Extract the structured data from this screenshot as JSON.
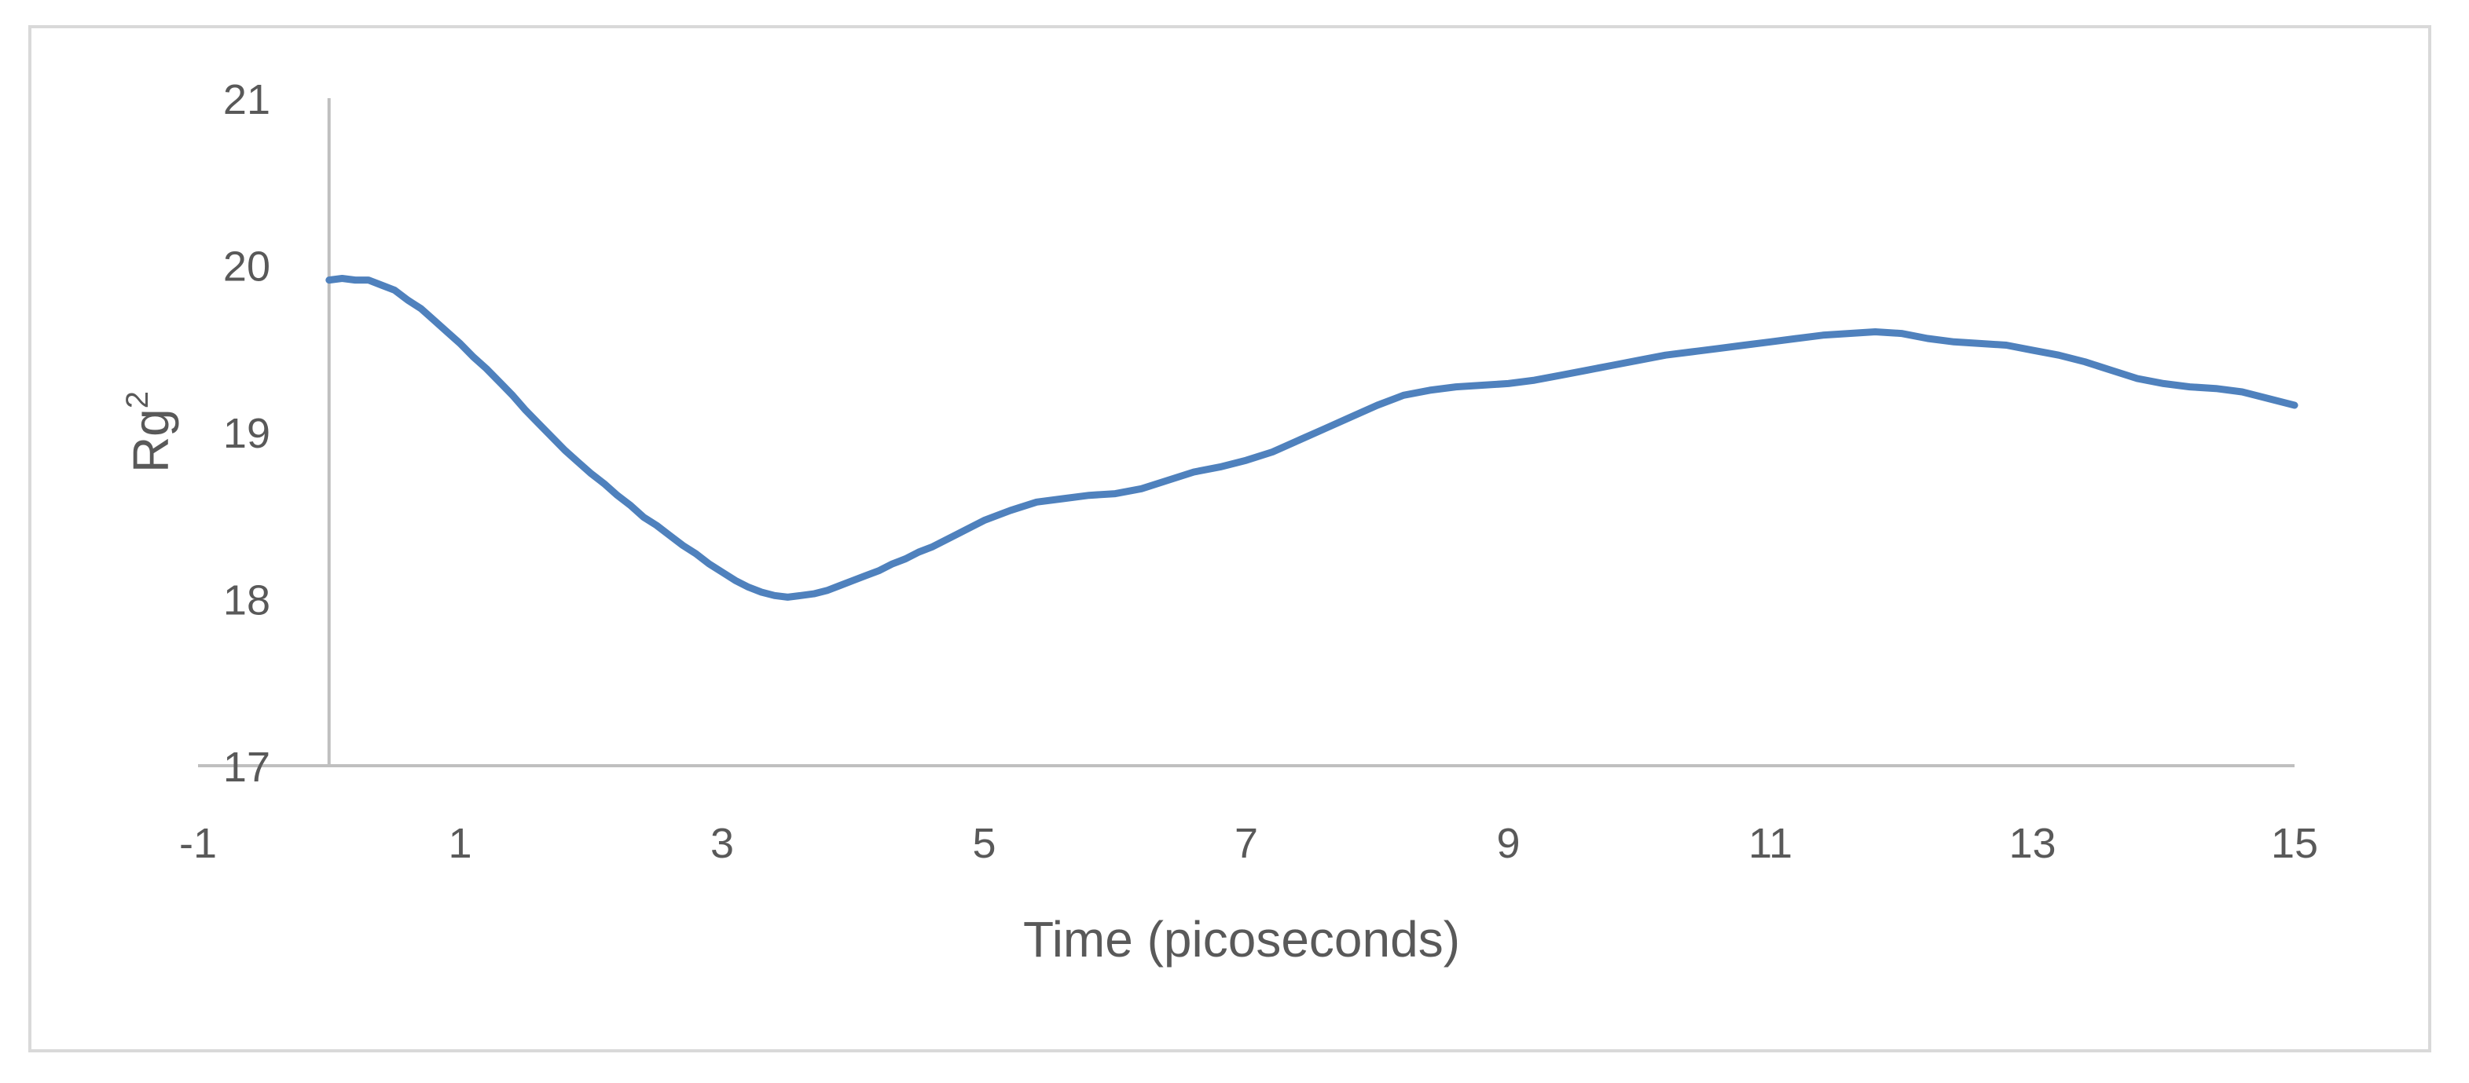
{
  "chart_data": {
    "type": "line",
    "xlabel": "Time (picoseconds)",
    "ylabel": {
      "base": "Rg",
      "superscript": "2"
    },
    "xlim": [
      -1,
      15
    ],
    "ylim": [
      17,
      21
    ],
    "xticks": [
      -1,
      1,
      3,
      5,
      7,
      9,
      11,
      13,
      15
    ],
    "yticks": [
      17,
      18,
      19,
      20,
      21
    ],
    "grid": false,
    "legend": "none",
    "line_color": "#4f81bd",
    "axis_color": "#bfbfbf",
    "series": [
      {
        "x": [
          0,
          0.1,
          0.2,
          0.3,
          0.4,
          0.5,
          0.6,
          0.7,
          0.8,
          0.9,
          1.0,
          1.1,
          1.2,
          1.3,
          1.4,
          1.5,
          1.6,
          1.7,
          1.8,
          1.9,
          2.0,
          2.1,
          2.2,
          2.3,
          2.4,
          2.5,
          2.6,
          2.7,
          2.8,
          2.9,
          3.0,
          3.1,
          3.2,
          3.3,
          3.4,
          3.5,
          3.6,
          3.7,
          3.8,
          3.9,
          4.0,
          4.1,
          4.2,
          4.3,
          4.4,
          4.5,
          4.6,
          4.7,
          4.8,
          4.9,
          5.0,
          5.2,
          5.4,
          5.6,
          5.8,
          6.0,
          6.2,
          6.4,
          6.6,
          6.8,
          7.0,
          7.2,
          7.4,
          7.6,
          7.8,
          8.0,
          8.2,
          8.4,
          8.6,
          8.8,
          9.0,
          9.2,
          9.4,
          9.6,
          9.8,
          10.0,
          10.2,
          10.4,
          10.6,
          10.8,
          11.0,
          11.2,
          11.4,
          11.6,
          11.8,
          12.0,
          12.2,
          12.4,
          12.6,
          12.8,
          13.0,
          13.2,
          13.4,
          13.6,
          13.8,
          14.0,
          14.2,
          14.4,
          14.6,
          14.8,
          15.0
        ],
        "y": [
          19.91,
          19.92,
          19.91,
          19.91,
          19.88,
          19.85,
          19.79,
          19.74,
          19.67,
          19.6,
          19.53,
          19.45,
          19.38,
          19.3,
          19.22,
          19.13,
          19.05,
          18.97,
          18.89,
          18.82,
          18.75,
          18.69,
          18.62,
          18.56,
          18.49,
          18.44,
          18.38,
          18.32,
          18.27,
          18.21,
          18.16,
          18.11,
          18.07,
          18.04,
          18.02,
          18.01,
          18.02,
          18.03,
          18.05,
          18.08,
          18.11,
          18.14,
          18.17,
          18.21,
          18.24,
          18.28,
          18.31,
          18.35,
          18.39,
          18.43,
          18.47,
          18.53,
          18.58,
          18.6,
          18.62,
          18.63,
          18.66,
          18.71,
          18.76,
          18.79,
          18.83,
          18.88,
          18.95,
          19.02,
          19.09,
          19.16,
          19.22,
          19.25,
          19.27,
          19.28,
          19.29,
          19.31,
          19.34,
          19.37,
          19.4,
          19.43,
          19.46,
          19.48,
          19.5,
          19.52,
          19.54,
          19.56,
          19.58,
          19.59,
          19.6,
          19.59,
          19.56,
          19.54,
          19.53,
          19.52,
          19.49,
          19.46,
          19.42,
          19.37,
          19.32,
          19.29,
          19.27,
          19.26,
          19.24,
          19.2,
          19.16
        ]
      }
    ]
  }
}
